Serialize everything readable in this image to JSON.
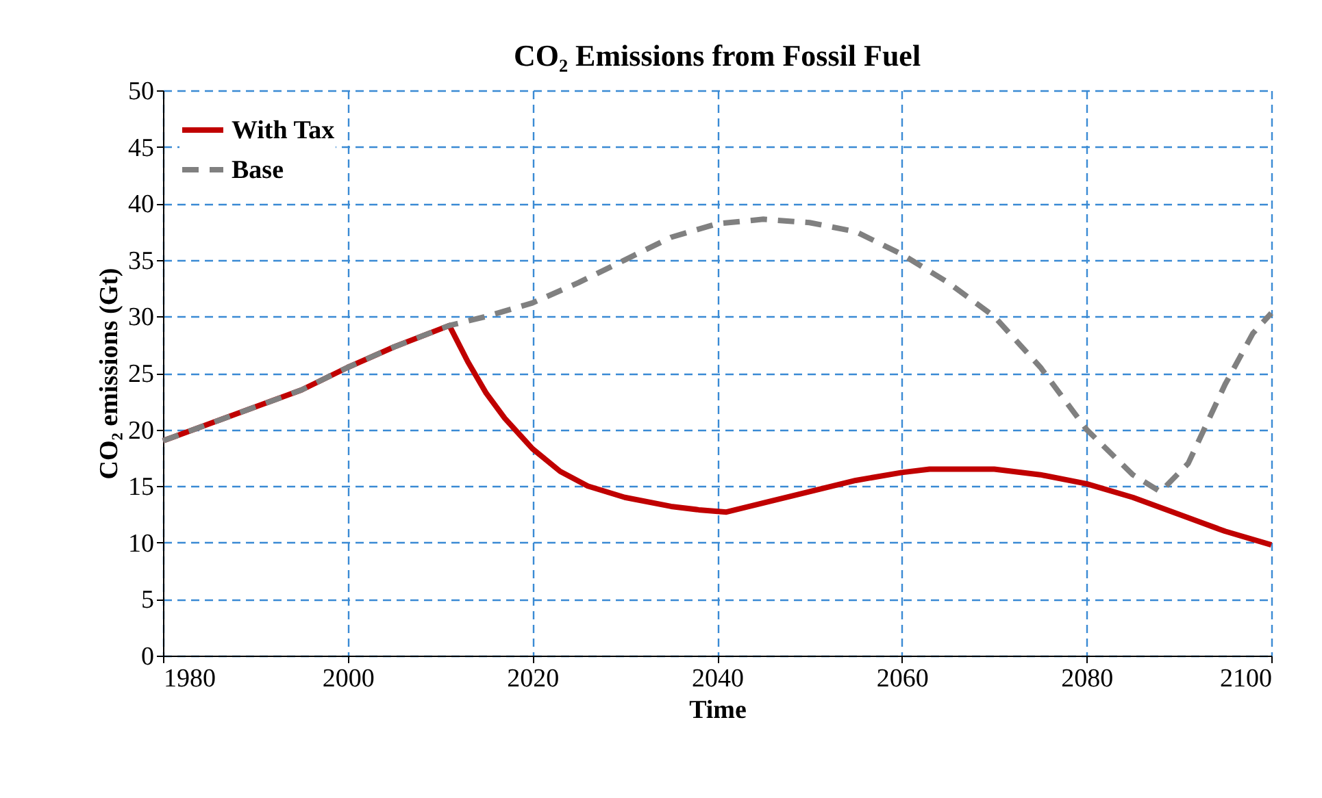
{
  "chart_data": {
    "type": "line",
    "title": "CO₂ Emissions from Fossil Fuel",
    "xlabel": "Time",
    "ylabel": "CO₂ emissions (Gt)",
    "xlim": [
      1980,
      2100
    ],
    "xticks": [
      1980,
      2000,
      2020,
      2040,
      2060,
      2080,
      2100
    ],
    "ylim": [
      0,
      50
    ],
    "yticks": [
      0,
      5,
      10,
      15,
      20,
      25,
      30,
      35,
      40,
      45,
      50
    ],
    "grid": true,
    "legend": "top left",
    "marker": "none",
    "series": [
      {
        "name": "With Tax",
        "color": "#c00000",
        "line_style": "solid",
        "x": [
          1980,
          1985,
          1990,
          1995,
          2000,
          2005,
          2011,
          2013,
          2015,
          2017,
          2020,
          2023,
          2026,
          2030,
          2035,
          2038,
          2041,
          2045,
          2050,
          2055,
          2060,
          2063,
          2070,
          2075,
          2080,
          2085,
          2090,
          2095,
          2100
        ],
        "values": [
          19,
          20.5,
          22,
          23.5,
          25.5,
          27.3,
          29.2,
          26,
          23.2,
          21,
          18.3,
          16.3,
          15,
          14,
          13.2,
          12.9,
          12.7,
          13.5,
          14.5,
          15.5,
          16.2,
          16.5,
          16.5,
          16,
          15.2,
          14,
          12.5,
          11,
          9.8
        ]
      },
      {
        "name": "Base",
        "color": "#808080",
        "line_style": "dashed",
        "x": [
          1980,
          1985,
          1990,
          1995,
          2000,
          2005,
          2011,
          2015,
          2020,
          2025,
          2030,
          2035,
          2040,
          2045,
          2050,
          2055,
          2060,
          2065,
          2070,
          2075,
          2080,
          2085,
          2088,
          2091,
          2095,
          2098,
          2100
        ],
        "values": [
          19,
          20.5,
          22,
          23.5,
          25.5,
          27.3,
          29.2,
          30,
          31.2,
          33,
          35,
          37,
          38.2,
          38.6,
          38.3,
          37.5,
          35.5,
          33,
          30,
          25.5,
          20,
          16,
          14.5,
          17,
          24,
          28.5,
          30.3
        ]
      }
    ]
  }
}
